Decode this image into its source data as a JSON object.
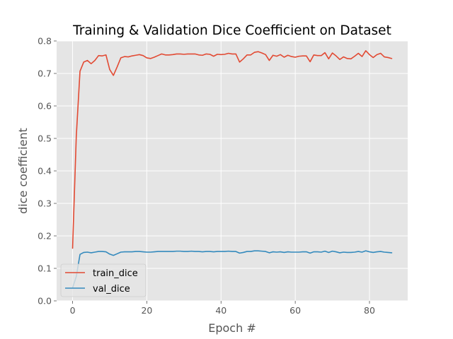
{
  "chart_data": {
    "type": "line",
    "title": "Training & Validation Dice Coefficient on Dataset",
    "xlabel": "Epoch #",
    "ylabel": "dice coefficient",
    "xlim": [
      -4.3,
      90.3
    ],
    "ylim": [
      0.0,
      0.8
    ],
    "xticks": [
      0,
      20,
      40,
      60,
      80
    ],
    "yticks": [
      0.0,
      0.1,
      0.2,
      0.3,
      0.4,
      0.5,
      0.6,
      0.7,
      0.8
    ],
    "grid": true,
    "legend_position": "lower-left",
    "series": [
      {
        "name": "train_dice",
        "color": "#e24a33",
        "x": [
          0,
          1,
          2,
          3,
          4,
          5,
          6,
          7,
          8,
          9,
          10,
          11,
          12,
          13,
          14,
          15,
          16,
          17,
          18,
          19,
          20,
          21,
          22,
          23,
          24,
          25,
          26,
          27,
          28,
          29,
          30,
          31,
          32,
          33,
          34,
          35,
          36,
          37,
          38,
          39,
          40,
          41,
          42,
          43,
          44,
          45,
          46,
          47,
          48,
          49,
          50,
          51,
          52,
          53,
          54,
          55,
          56,
          57,
          58,
          59,
          60,
          61,
          62,
          63,
          64,
          65,
          66,
          67,
          68,
          69,
          70,
          71,
          72,
          73,
          74,
          75,
          76,
          77,
          78,
          79,
          80,
          81,
          82,
          83,
          84,
          85,
          86
        ],
        "values": [
          0.162,
          0.507,
          0.707,
          0.735,
          0.74,
          0.73,
          0.74,
          0.755,
          0.754,
          0.757,
          0.712,
          0.694,
          0.72,
          0.748,
          0.752,
          0.751,
          0.754,
          0.756,
          0.758,
          0.755,
          0.748,
          0.746,
          0.75,
          0.755,
          0.76,
          0.757,
          0.757,
          0.758,
          0.76,
          0.76,
          0.759,
          0.76,
          0.76,
          0.76,
          0.757,
          0.756,
          0.76,
          0.759,
          0.753,
          0.759,
          0.758,
          0.759,
          0.762,
          0.76,
          0.76,
          0.735,
          0.745,
          0.757,
          0.757,
          0.765,
          0.767,
          0.763,
          0.758,
          0.74,
          0.756,
          0.753,
          0.758,
          0.75,
          0.756,
          0.752,
          0.75,
          0.753,
          0.754,
          0.754,
          0.736,
          0.757,
          0.755,
          0.755,
          0.764,
          0.745,
          0.763,
          0.754,
          0.743,
          0.751,
          0.746,
          0.745,
          0.753,
          0.762,
          0.752,
          0.77,
          0.758,
          0.749,
          0.758,
          0.762,
          0.751,
          0.749,
          0.746
        ]
      },
      {
        "name": "val_dice",
        "color": "#348abd",
        "x": [
          0,
          1,
          2,
          3,
          4,
          5,
          6,
          7,
          8,
          9,
          10,
          11,
          12,
          13,
          14,
          15,
          16,
          17,
          18,
          19,
          20,
          21,
          22,
          23,
          24,
          25,
          26,
          27,
          28,
          29,
          30,
          31,
          32,
          33,
          34,
          35,
          36,
          37,
          38,
          39,
          40,
          41,
          42,
          43,
          44,
          45,
          46,
          47,
          48,
          49,
          50,
          51,
          52,
          53,
          54,
          55,
          56,
          57,
          58,
          59,
          60,
          61,
          62,
          63,
          64,
          65,
          66,
          67,
          68,
          69,
          70,
          71,
          72,
          73,
          74,
          75,
          76,
          77,
          78,
          79,
          80,
          81,
          82,
          83,
          84,
          85,
          86
        ],
        "values": [
          0.04,
          0.075,
          0.143,
          0.149,
          0.15,
          0.148,
          0.15,
          0.152,
          0.152,
          0.151,
          0.144,
          0.14,
          0.145,
          0.15,
          0.151,
          0.151,
          0.151,
          0.152,
          0.152,
          0.151,
          0.15,
          0.15,
          0.151,
          0.152,
          0.152,
          0.152,
          0.152,
          0.152,
          0.153,
          0.153,
          0.152,
          0.152,
          0.153,
          0.152,
          0.152,
          0.151,
          0.152,
          0.152,
          0.151,
          0.152,
          0.152,
          0.152,
          0.153,
          0.152,
          0.152,
          0.147,
          0.149,
          0.152,
          0.152,
          0.154,
          0.154,
          0.153,
          0.152,
          0.148,
          0.151,
          0.15,
          0.151,
          0.149,
          0.151,
          0.15,
          0.15,
          0.15,
          0.151,
          0.151,
          0.147,
          0.151,
          0.151,
          0.15,
          0.153,
          0.149,
          0.153,
          0.151,
          0.148,
          0.15,
          0.149,
          0.149,
          0.15,
          0.152,
          0.15,
          0.154,
          0.151,
          0.149,
          0.151,
          0.152,
          0.15,
          0.149,
          0.148
        ]
      }
    ]
  }
}
